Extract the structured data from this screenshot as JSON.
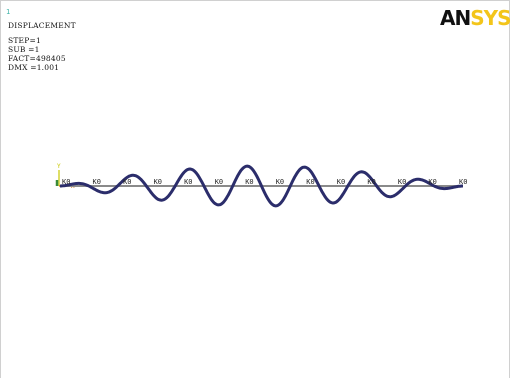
{
  "window": {
    "number": "1"
  },
  "plot_info": {
    "title": "DISPLACEMENT",
    "step": "STEP=1",
    "sub": "SUB =1",
    "fact": "FACT=498405",
    "dmx": "DMX =1.001"
  },
  "logo": {
    "part1": "AN",
    "part2": "SYS",
    "part2_color": "#f3c51a"
  },
  "axis_triad": {
    "y_label": "Y",
    "x_label": "X",
    "y_color": "#c8c800",
    "x_color": "#cc6600"
  },
  "keypoint_labels": [
    "K0",
    "K0",
    "K0",
    "K0",
    "K0",
    "K0",
    "K0",
    "K0",
    "K0",
    "K0",
    "K0",
    "K0",
    "K0",
    "K0"
  ],
  "colors": {
    "deformed": "#2b2d6b",
    "undeformed": "#8a8a8a"
  }
}
